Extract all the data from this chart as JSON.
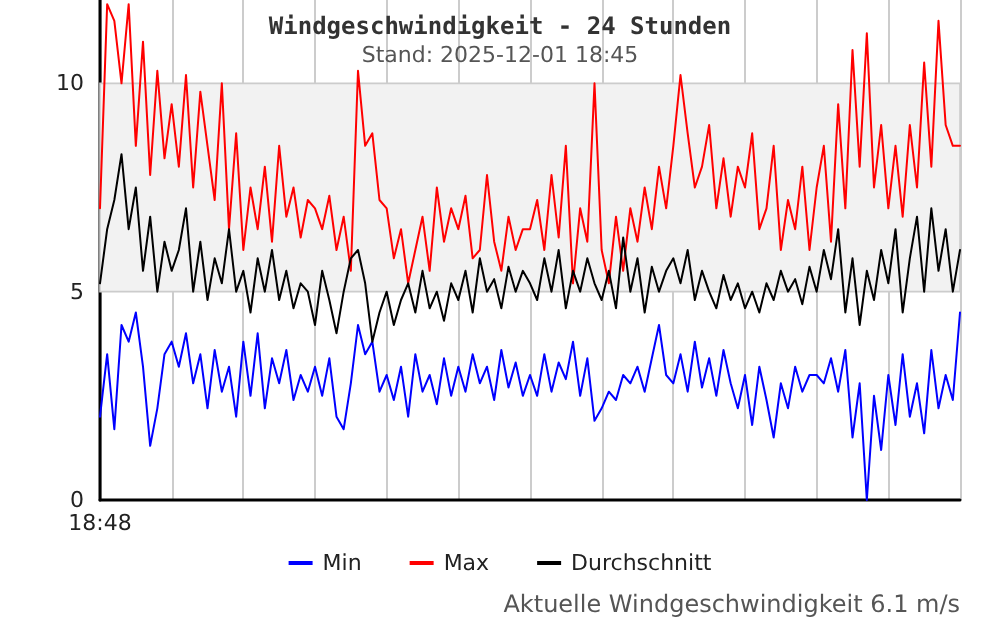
{
  "chart_data": {
    "type": "line",
    "title": "Windgeschwindigkeit - 24 Stunden",
    "subtitle": "Stand: 2025-12-01 18:45",
    "annotations": [
      "Aktuelle Windgeschwindigkeit 6.1 m/s"
    ],
    "categories": [
      "18:48",
      null,
      null,
      null,
      null,
      null,
      null,
      null,
      null,
      null,
      null,
      null,
      null,
      null,
      null,
      null,
      null,
      null,
      null,
      null,
      null,
      null,
      null,
      null,
      null,
      null,
      null,
      null,
      null,
      null,
      null,
      null,
      null,
      null,
      null,
      null,
      null,
      null,
      null,
      null,
      null,
      null,
      null,
      null,
      null,
      null,
      null,
      null,
      null,
      null,
      null,
      null,
      null,
      null,
      null,
      null,
      null,
      null,
      null,
      null,
      null,
      null,
      null,
      null,
      null,
      null,
      null,
      null,
      null,
      null,
      null,
      null,
      null,
      null,
      null,
      null,
      null,
      null,
      null,
      null,
      null,
      null,
      null,
      null,
      null,
      null,
      null,
      null,
      null,
      null,
      null,
      null,
      null,
      null,
      null,
      null,
      null,
      null,
      null,
      null,
      null,
      null,
      null,
      null,
      null,
      null,
      null,
      null,
      null,
      null,
      null,
      null,
      null,
      null,
      null,
      null,
      null,
      null,
      null,
      null,
      null
    ],
    "series": [
      {
        "name": "Min",
        "color": "#0000ff",
        "values": [
          2.0,
          3.5,
          1.7,
          4.2,
          3.8,
          4.5,
          3.2,
          1.3,
          2.2,
          3.5,
          3.8,
          3.2,
          4.0,
          2.8,
          3.5,
          2.2,
          3.6,
          2.6,
          3.2,
          2.0,
          3.8,
          2.5,
          4.0,
          2.2,
          3.4,
          2.8,
          3.6,
          2.4,
          3.0,
          2.6,
          3.2,
          2.5,
          3.4,
          2.0,
          1.7,
          2.8,
          4.2,
          3.5,
          3.8,
          2.6,
          3.0,
          2.4,
          3.2,
          2.0,
          3.5,
          2.6,
          3.0,
          2.3,
          3.4,
          2.5,
          3.2,
          2.6,
          3.5,
          2.8,
          3.2,
          2.4,
          3.6,
          2.7,
          3.3,
          2.5,
          3.0,
          2.5,
          3.5,
          2.6,
          3.3,
          2.9,
          3.8,
          2.5,
          3.4,
          1.9,
          2.2,
          2.6,
          2.4,
          3.0,
          2.8,
          3.2,
          2.6,
          3.4,
          4.2,
          3.0,
          2.8,
          3.5,
          2.6,
          3.8,
          2.7,
          3.4,
          2.5,
          3.6,
          2.8,
          2.2,
          3.0,
          1.8,
          3.2,
          2.4,
          1.5,
          2.8,
          2.2,
          3.2,
          2.6,
          3.0,
          3.0,
          2.8,
          3.4,
          2.6,
          3.6,
          1.5,
          2.8,
          0.0,
          2.5,
          1.2,
          3.0,
          1.8,
          3.5,
          2.0,
          2.8,
          1.6,
          3.6,
          2.2,
          3.0,
          2.4,
          4.5
        ]
      },
      {
        "name": "Max",
        "color": "#ff0000",
        "values": [
          7.0,
          11.9,
          11.5,
          10.0,
          11.9,
          8.5,
          11.0,
          7.8,
          10.3,
          8.2,
          9.5,
          8.0,
          10.2,
          7.5,
          9.8,
          8.5,
          7.2,
          10.0,
          6.5,
          8.8,
          6.0,
          7.5,
          6.5,
          8.0,
          6.2,
          8.5,
          6.8,
          7.5,
          6.3,
          7.2,
          7.0,
          6.5,
          7.3,
          6.0,
          6.8,
          5.5,
          10.3,
          8.5,
          8.8,
          7.2,
          7.0,
          5.8,
          6.5,
          5.2,
          6.0,
          6.8,
          5.5,
          7.5,
          6.2,
          7.0,
          6.5,
          7.3,
          5.8,
          6.0,
          7.8,
          6.2,
          5.5,
          6.8,
          6.0,
          6.5,
          6.5,
          7.2,
          6.0,
          7.8,
          6.3,
          8.5,
          5.2,
          7.0,
          6.2,
          10.0,
          6.0,
          5.2,
          6.8,
          5.5,
          7.0,
          6.2,
          7.5,
          6.5,
          8.0,
          7.0,
          8.5,
          10.2,
          8.8,
          7.5,
          8.0,
          9.0,
          7.0,
          8.2,
          6.8,
          8.0,
          7.5,
          8.8,
          6.5,
          7.0,
          8.5,
          6.0,
          7.2,
          6.5,
          8.0,
          6.0,
          7.5,
          8.5,
          6.2,
          9.5,
          7.0,
          10.8,
          8.0,
          11.2,
          7.5,
          9.0,
          7.0,
          8.5,
          6.8,
          9.0,
          7.5,
          10.5,
          8.0,
          11.5,
          9.0,
          8.5,
          8.5
        ]
      },
      {
        "name": "Durchschnitt",
        "color": "#000000",
        "values": [
          5.2,
          6.5,
          7.2,
          8.3,
          6.5,
          7.5,
          5.5,
          6.8,
          5.0,
          6.2,
          5.5,
          6.0,
          7.0,
          5.0,
          6.2,
          4.8,
          5.8,
          5.2,
          6.5,
          5.0,
          5.5,
          4.5,
          5.8,
          5.0,
          6.0,
          4.8,
          5.5,
          4.6,
          5.2,
          5.0,
          4.2,
          5.5,
          4.8,
          4.0,
          5.0,
          5.8,
          6.0,
          5.2,
          3.8,
          4.5,
          5.0,
          4.2,
          4.8,
          5.2,
          4.5,
          5.5,
          4.6,
          5.0,
          4.3,
          5.2,
          4.8,
          5.5,
          4.5,
          5.8,
          5.0,
          5.3,
          4.6,
          5.6,
          5.0,
          5.5,
          5.2,
          4.8,
          5.8,
          5.0,
          6.0,
          4.6,
          5.5,
          5.0,
          5.8,
          5.2,
          4.8,
          5.5,
          4.6,
          6.3,
          5.0,
          5.8,
          4.5,
          5.6,
          5.0,
          5.5,
          5.8,
          5.2,
          6.0,
          4.8,
          5.5,
          5.0,
          4.6,
          5.4,
          4.8,
          5.2,
          4.6,
          5.0,
          4.5,
          5.2,
          4.8,
          5.5,
          5.0,
          5.3,
          4.7,
          5.6,
          5.0,
          6.0,
          5.3,
          6.5,
          4.5,
          5.8,
          4.2,
          5.5,
          4.8,
          6.0,
          5.2,
          6.5,
          4.5,
          5.8,
          6.8,
          5.0,
          7.0,
          5.5,
          6.5,
          5.0,
          6.0
        ]
      }
    ],
    "ylim": [
      0,
      12
    ],
    "yticks": [
      0,
      5,
      10
    ],
    "bands": [
      {
        "axis": "y",
        "from": 5,
        "to": 10,
        "color": "#f2f2f2"
      }
    ],
    "grid": "x",
    "legend": "bottom",
    "marker": "none",
    "line_style": "solid"
  }
}
